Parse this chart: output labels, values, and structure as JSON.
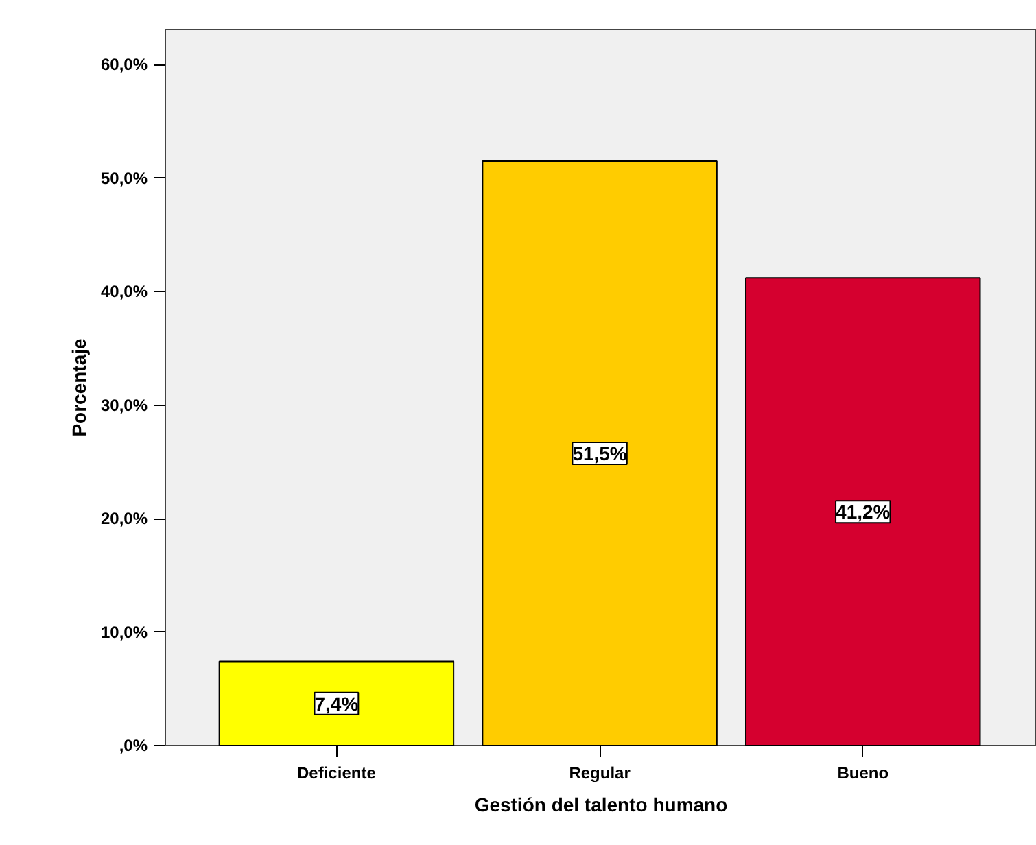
{
  "chart_data": {
    "type": "bar",
    "xlabel": "Gestión del talento humano",
    "ylabel": "Porcentaje",
    "categories": [
      "Deficiente",
      "Regular",
      "Bueno"
    ],
    "values": [
      7.4,
      51.5,
      41.2
    ],
    "colors": [
      "#ffff00",
      "#ffcc00",
      "#d5002f"
    ],
    "value_labels": [
      "7,4%",
      "51,5%",
      "41,2%"
    ],
    "ylim": [
      0,
      63.1
    ],
    "yticks": [
      {
        "value": 0,
        "label": ",0%"
      },
      {
        "value": 10,
        "label": "10,0%"
      },
      {
        "value": 20,
        "label": "20,0%"
      },
      {
        "value": 30,
        "label": "30,0%"
      },
      {
        "value": 40,
        "label": "40,0%"
      },
      {
        "value": 50,
        "label": "50,0%"
      },
      {
        "value": 60,
        "label": "60,0%"
      }
    ],
    "grid": false
  }
}
